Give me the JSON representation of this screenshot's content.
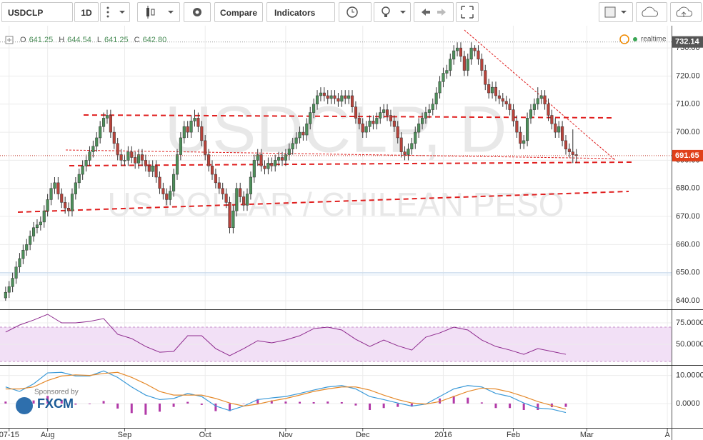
{
  "toolbar": {
    "symbol": "USDCLP",
    "interval": "1D",
    "compare": "Compare",
    "indicators": "Indicators"
  },
  "sponsor": {
    "caption": "Sponsored by",
    "name": "FXCM"
  },
  "chart_data": [
    {
      "type": "candlestick",
      "watermark": [
        "USDCLP, D",
        "US DOLLAR / CHILEAN PESO"
      ],
      "status": "realtime",
      "header": [
        {
          "name": "O",
          "value": 641.25,
          "label": "641.25"
        },
        {
          "name": "H",
          "value": 644.54,
          "label": "644.54"
        },
        {
          "name": "L",
          "value": 641.25,
          "label": "641.25"
        },
        {
          "name": "C",
          "value": 642.8,
          "label": "642.80"
        }
      ],
      "up_color": "#4d8f5a",
      "down_color": "#b8433b",
      "grid": true,
      "xlim": [
        -1.6,
        190.2
      ],
      "xticks": [
        {
          "value": 1,
          "label": "07-15"
        },
        {
          "value": 12,
          "label": "Aug"
        },
        {
          "value": 34,
          "label": "Sep"
        },
        {
          "value": 57,
          "label": "Oct"
        },
        {
          "value": 80,
          "label": "Nov"
        },
        {
          "value": 102,
          "label": "Dec"
        },
        {
          "value": 125,
          "label": "2016"
        },
        {
          "value": 145,
          "label": "Feb"
        },
        {
          "value": 166,
          "label": "Mar"
        },
        {
          "value": 189,
          "label": "A"
        }
      ],
      "ylim": [
        637.2,
        736.9
      ],
      "yticks": [
        {
          "value": 640,
          "label": "640.00"
        },
        {
          "value": 650,
          "label": "650.00"
        },
        {
          "value": 660,
          "label": "660.00"
        },
        {
          "value": 670,
          "label": "670.00"
        },
        {
          "value": 680,
          "label": "680.00"
        },
        {
          "value": 690,
          "label": "690.00"
        },
        {
          "value": 700,
          "label": "700.00"
        },
        {
          "value": 710,
          "label": "710.00"
        },
        {
          "value": 720,
          "label": "720.00"
        },
        {
          "value": 730,
          "label": "730.00"
        }
      ],
      "high_price": {
        "value": 732.14,
        "label": "732.14"
      },
      "last_price": {
        "value": 691.65,
        "label": "691.65"
      },
      "candles": [
        [
          641,
          645,
          640,
          643
        ],
        [
          643,
          647,
          641,
          645
        ],
        [
          645,
          650,
          643,
          648
        ],
        [
          648,
          654,
          646,
          652
        ],
        [
          652,
          657,
          650,
          655
        ],
        [
          655,
          660,
          653,
          658
        ],
        [
          658,
          662,
          656,
          660
        ],
        [
          660,
          665,
          658,
          663
        ],
        [
          663,
          668,
          661,
          666
        ],
        [
          666,
          669,
          664,
          667
        ],
        [
          667,
          670,
          665,
          668
        ],
        [
          668,
          674,
          666,
          672
        ],
        [
          672,
          678,
          670,
          676
        ],
        [
          676,
          682,
          674,
          680
        ],
        [
          680,
          684,
          678,
          682
        ],
        [
          682,
          684,
          676,
          678
        ],
        [
          678,
          680,
          673,
          675
        ],
        [
          675,
          677,
          671,
          673
        ],
        [
          673,
          675,
          670,
          672
        ],
        [
          672,
          680,
          670,
          678
        ],
        [
          678,
          684,
          676,
          682
        ],
        [
          682,
          687,
          680,
          685
        ],
        [
          685,
          690,
          683,
          688
        ],
        [
          688,
          692,
          686,
          690
        ],
        [
          690,
          695,
          688,
          693
        ],
        [
          693,
          697,
          691,
          695
        ],
        [
          695,
          700,
          693,
          698
        ],
        [
          698,
          704,
          696,
          702
        ],
        [
          702,
          707,
          700,
          705
        ],
        [
          705,
          708,
          703,
          706
        ],
        [
          706,
          708,
          698,
          700
        ],
        [
          700,
          702,
          694,
          696
        ],
        [
          696,
          698,
          690,
          692
        ],
        [
          692,
          694,
          688,
          690
        ],
        [
          690,
          692,
          688,
          690
        ],
        [
          690,
          695,
          688,
          693
        ],
        [
          693,
          695,
          689,
          691
        ],
        [
          691,
          693,
          687,
          689
        ],
        [
          689,
          694,
          687,
          692
        ],
        [
          692,
          694,
          688,
          690
        ],
        [
          690,
          692,
          686,
          688
        ],
        [
          688,
          690,
          684,
          686
        ],
        [
          686,
          690,
          684,
          688
        ],
        [
          688,
          690,
          682,
          684
        ],
        [
          684,
          686,
          678,
          680
        ],
        [
          680,
          682,
          676,
          678
        ],
        [
          678,
          680,
          674,
          676
        ],
        [
          676,
          681,
          674,
          679
        ],
        [
          679,
          687,
          677,
          685
        ],
        [
          685,
          694,
          683,
          692
        ],
        [
          692,
          700,
          690,
          698
        ],
        [
          698,
          704,
          696,
          702
        ],
        [
          702,
          704,
          698,
          700
        ],
        [
          700,
          706,
          698,
          704
        ],
        [
          704,
          708,
          702,
          705
        ],
        [
          705,
          707,
          700,
          702
        ],
        [
          702,
          704,
          695,
          697
        ],
        [
          697,
          699,
          690,
          692
        ],
        [
          692,
          694,
          686,
          688
        ],
        [
          688,
          690,
          683,
          685
        ],
        [
          685,
          687,
          680,
          682
        ],
        [
          682,
          684,
          678,
          680
        ],
        [
          680,
          682,
          676,
          678
        ],
        [
          678,
          680,
          673,
          675
        ],
        [
          675,
          677,
          664,
          666
        ],
        [
          666,
          674,
          664,
          672
        ],
        [
          672,
          682,
          670,
          680
        ],
        [
          680,
          682,
          675,
          677
        ],
        [
          677,
          679,
          672,
          674
        ],
        [
          674,
          680,
          672,
          678
        ],
        [
          678,
          686,
          676,
          684
        ],
        [
          684,
          692,
          682,
          690
        ],
        [
          690,
          694,
          688,
          692
        ],
        [
          692,
          694,
          686,
          688
        ],
        [
          688,
          690,
          685,
          687
        ],
        [
          687,
          691,
          685,
          689
        ],
        [
          689,
          691,
          686,
          688
        ],
        [
          688,
          692,
          686,
          690
        ],
        [
          690,
          693,
          688,
          691
        ],
        [
          691,
          693,
          688,
          690
        ],
        [
          690,
          694,
          688,
          692
        ],
        [
          692,
          696,
          690,
          694
        ],
        [
          694,
          698,
          692,
          696
        ],
        [
          696,
          700,
          694,
          698
        ],
        [
          698,
          702,
          696,
          700
        ],
        [
          700,
          702,
          697,
          699
        ],
        [
          699,
          705,
          697,
          703
        ],
        [
          703,
          709,
          701,
          707
        ],
        [
          707,
          712,
          705,
          710
        ],
        [
          710,
          715,
          708,
          713
        ],
        [
          713,
          716,
          711,
          714
        ],
        [
          714,
          716,
          711,
          713
        ],
        [
          713,
          715,
          710,
          712
        ],
        [
          712,
          715,
          710,
          713
        ],
        [
          713,
          715,
          710,
          712
        ],
        [
          712,
          714,
          709,
          711
        ],
        [
          711,
          715,
          709,
          713
        ],
        [
          713,
          715,
          710,
          712
        ],
        [
          712,
          715,
          710,
          713
        ],
        [
          713,
          715,
          707,
          709
        ],
        [
          709,
          711,
          703,
          705
        ],
        [
          705,
          707,
          701,
          703
        ],
        [
          703,
          705,
          698,
          700
        ],
        [
          700,
          704,
          698,
          702
        ],
        [
          702,
          706,
          700,
          704
        ],
        [
          704,
          706,
          701,
          703
        ],
        [
          703,
          707,
          701,
          705
        ],
        [
          705,
          709,
          703,
          707
        ],
        [
          707,
          710,
          705,
          708
        ],
        [
          708,
          710,
          704,
          706
        ],
        [
          706,
          708,
          702,
          704
        ],
        [
          704,
          706,
          700,
          702
        ],
        [
          702,
          704,
          696,
          698
        ],
        [
          698,
          700,
          691,
          693
        ],
        [
          693,
          695,
          690,
          692
        ],
        [
          692,
          696,
          690,
          694
        ],
        [
          694,
          698,
          692,
          696
        ],
        [
          696,
          702,
          694,
          700
        ],
        [
          700,
          705,
          698,
          703
        ],
        [
          703,
          707,
          701,
          705
        ],
        [
          705,
          709,
          703,
          707
        ],
        [
          707,
          710,
          705,
          708
        ],
        [
          708,
          712,
          706,
          710
        ],
        [
          710,
          716,
          708,
          714
        ],
        [
          714,
          720,
          712,
          718
        ],
        [
          718,
          723,
          716,
          721
        ],
        [
          721,
          724,
          719,
          722
        ],
        [
          722,
          728,
          720,
          726
        ],
        [
          726,
          731,
          724,
          729
        ],
        [
          729,
          732,
          727,
          730
        ],
        [
          730,
          732,
          725,
          727
        ],
        [
          727,
          729,
          720,
          722
        ],
        [
          722,
          728,
          720,
          726
        ],
        [
          726,
          732,
          724,
          730
        ],
        [
          730,
          731,
          727,
          729
        ],
        [
          729,
          731,
          724,
          726
        ],
        [
          726,
          728,
          720,
          722
        ],
        [
          722,
          724,
          715,
          717
        ],
        [
          717,
          719,
          712,
          714
        ],
        [
          714,
          718,
          712,
          716
        ],
        [
          716,
          718,
          711,
          713
        ],
        [
          713,
          715,
          710,
          712
        ],
        [
          712,
          714,
          709,
          711
        ],
        [
          711,
          713,
          708,
          710
        ],
        [
          710,
          712,
          706,
          708
        ],
        [
          708,
          710,
          702,
          704
        ],
        [
          704,
          706,
          698,
          700
        ],
        [
          700,
          702,
          694,
          696
        ],
        [
          696,
          699,
          694,
          697
        ],
        [
          697,
          707,
          695,
          705
        ],
        [
          705,
          710,
          703,
          708
        ],
        [
          708,
          712,
          706,
          710
        ],
        [
          710,
          716,
          708,
          712
        ],
        [
          712,
          715,
          710,
          713
        ],
        [
          713,
          715,
          708,
          710
        ],
        [
          710,
          712,
          704,
          706
        ],
        [
          706,
          708,
          701,
          703
        ],
        [
          703,
          705,
          698,
          700
        ],
        [
          700,
          704,
          698,
          702
        ],
        [
          702,
          704,
          695,
          697
        ],
        [
          697,
          699,
          692,
          694
        ],
        [
          694,
          696,
          691,
          693
        ],
        [
          693,
          701,
          689,
          692
        ],
        [
          692,
          694,
          689,
          691.65
        ]
      ]
    },
    {
      "type": "line",
      "color": "#8e2a8e",
      "band": [
        30,
        70
      ],
      "band_color": "#f2e0f6",
      "ylim": [
        26.7,
        87.5
      ],
      "yticks": [
        {
          "value": 75,
          "label": "75.0000"
        },
        {
          "value": 50,
          "label": "50.0000"
        }
      ],
      "values": [
        64.2,
        72.5,
        78.3,
        85,
        75,
        75,
        76.7,
        80,
        61.7,
        56.7,
        47.5,
        40.8,
        41.7,
        60,
        60,
        45,
        36.7,
        45,
        54.2,
        51.7,
        55,
        60,
        68.3,
        70,
        66.7,
        55.8,
        47.5,
        55,
        48.3,
        43.3,
        58.3,
        63.3,
        70,
        66.7,
        55,
        47.5,
        43.3,
        38.3,
        45,
        41.7,
        38.3
      ]
    },
    {
      "type": "combo",
      "ylim": [
        -8.4,
        13.2
      ],
      "yticks": [
        {
          "value": 10,
          "label": "10.0000"
        },
        {
          "value": 0,
          "label": "0.0000"
        }
      ],
      "series": [
        {
          "kind": "bar",
          "color": "#b23aa8",
          "values": [
            0.7,
            -0.9,
            1.1,
            2.7,
            1.3,
            -0.4,
            -0.2,
            0.9,
            -1.8,
            -3.4,
            -4.0,
            -2.9,
            -1.2,
            0.6,
            -0.5,
            -2.7,
            -2.7,
            0,
            1.6,
            1.1,
            0.7,
            0.6,
            0.5,
            0.7,
            0.5,
            -0.7,
            -2.3,
            -1.6,
            -1.2,
            -1.1,
            0,
            1.8,
            2.7,
            2.1,
            0.4,
            -1.6,
            -1.6,
            -2.3,
            -2.3,
            -1.3,
            -1.2
          ]
        },
        {
          "kind": "line",
          "color": "#3c9ad8",
          "values": [
            5.9,
            4.3,
            7.0,
            10.9,
            11.1,
            9.8,
            9.8,
            11.6,
            9.3,
            5.9,
            3.0,
            1.4,
            1.8,
            3.6,
            2.5,
            -0.9,
            -2.5,
            -0.9,
            1.4,
            2.0,
            2.5,
            3.6,
            4.8,
            5.9,
            6.4,
            5.2,
            2.5,
            1.4,
            0.2,
            -0.9,
            -0.2,
            2.5,
            5.2,
            6.4,
            5.9,
            3.6,
            2.5,
            0.2,
            -1.6,
            -2.0,
            -3.2
          ]
        },
        {
          "kind": "line",
          "color": "#e58a2c",
          "values": [
            5.2,
            5.2,
            5.9,
            8.2,
            9.8,
            10.2,
            10.0,
            10.7,
            11.1,
            9.3,
            7.0,
            4.3,
            3.0,
            3.0,
            3.0,
            1.8,
            0.2,
            -0.9,
            -0.2,
            0.9,
            1.8,
            3.0,
            4.3,
            5.2,
            5.9,
            5.9,
            4.8,
            3.0,
            1.4,
            0.2,
            -0.2,
            0.7,
            2.5,
            4.3,
            5.5,
            5.2,
            4.1,
            2.5,
            0.7,
            -0.7,
            -2.0
          ]
        }
      ]
    }
  ]
}
